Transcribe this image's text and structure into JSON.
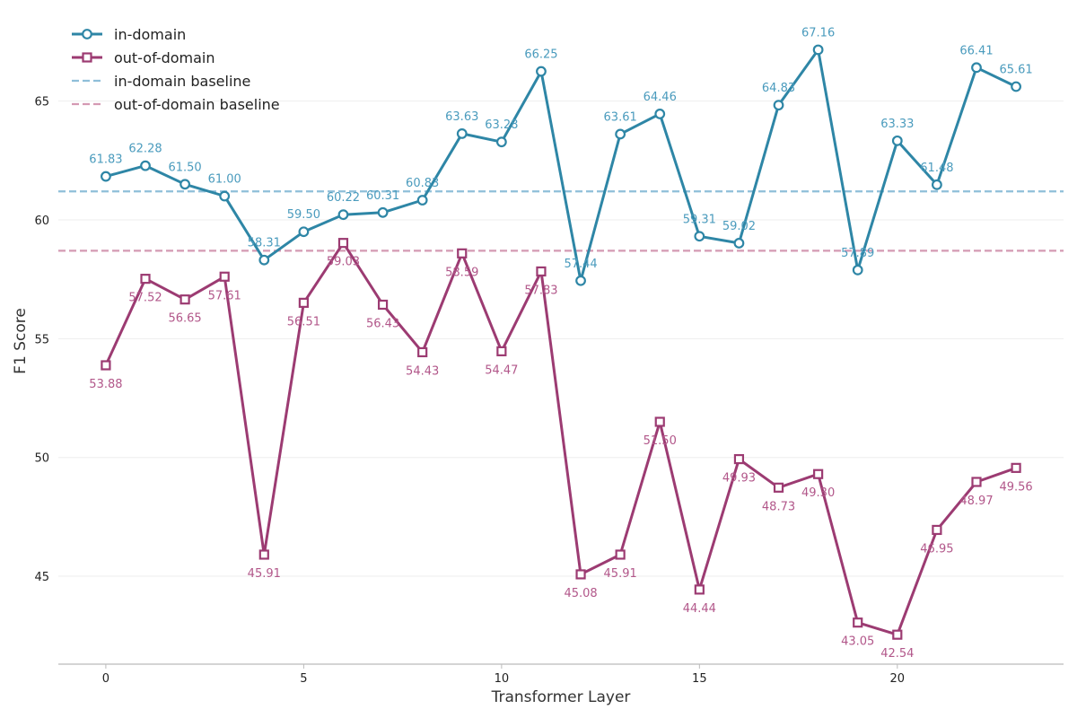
{
  "chart_data": {
    "type": "line",
    "xlabel": "Transformer Layer",
    "ylabel": "F1 Score",
    "xlim": [
      -1.2,
      24.2
    ],
    "ylim": [
      41.3,
      68.5
    ],
    "xticks": [
      0,
      5,
      10,
      15,
      20
    ],
    "yticks": [
      45,
      50,
      55,
      60,
      65
    ],
    "grid": "horizontal",
    "legend_position": "top-left",
    "x": [
      0,
      1,
      2,
      3,
      4,
      5,
      6,
      7,
      8,
      9,
      10,
      11,
      12,
      13,
      14,
      15,
      16,
      17,
      18,
      19,
      20,
      21,
      22,
      23
    ],
    "series": [
      {
        "name": "in-domain",
        "color": "#2e86a6",
        "label_color": "#4a9bbd",
        "marker": "circle",
        "values": [
          61.83,
          62.28,
          61.5,
          61.0,
          58.31,
          59.5,
          60.22,
          60.31,
          60.83,
          63.63,
          63.28,
          66.25,
          57.44,
          63.61,
          64.46,
          59.31,
          59.02,
          64.83,
          67.16,
          57.89,
          63.33,
          61.48,
          66.41,
          65.61
        ],
        "labels": [
          "61.83",
          "62.28",
          "61.50",
          "61.00",
          "58.31",
          "59.50",
          "60.22",
          "60.31",
          "60.83",
          "63.63",
          "63.28",
          "66.25",
          "57.44",
          "63.61",
          "64.46",
          "59.31",
          "59.02",
          "64.83",
          "67.16",
          "57.89",
          "63.33",
          "61.48",
          "66.41",
          "65.61"
        ]
      },
      {
        "name": "out-of-domain",
        "color": "#9c3b72",
        "label_color": "#b2578a",
        "marker": "square",
        "values": [
          53.88,
          57.52,
          56.65,
          57.61,
          45.91,
          56.51,
          59.03,
          56.43,
          54.43,
          58.59,
          54.47,
          57.83,
          45.08,
          45.91,
          51.5,
          44.44,
          49.93,
          48.73,
          49.3,
          43.05,
          42.54,
          46.95,
          48.97,
          49.56
        ],
        "labels": [
          "53.88",
          "57.52",
          "56.65",
          "57.61",
          "45.91",
          "56.51",
          "59.03",
          "56.43",
          "54.43",
          "58.59",
          "54.47",
          "57.83",
          "45.08",
          "45.91",
          "51.50",
          "44.44",
          "49.93",
          "48.73",
          "49.30",
          "43.05",
          "42.54",
          "46.95",
          "48.97",
          "49.56"
        ]
      }
    ],
    "baselines": [
      {
        "name": "in-domain baseline",
        "value": 61.2,
        "color": "#8fbfd9"
      },
      {
        "name": "out-of-domain baseline",
        "value": 58.7,
        "color": "#d49ab3"
      }
    ]
  }
}
